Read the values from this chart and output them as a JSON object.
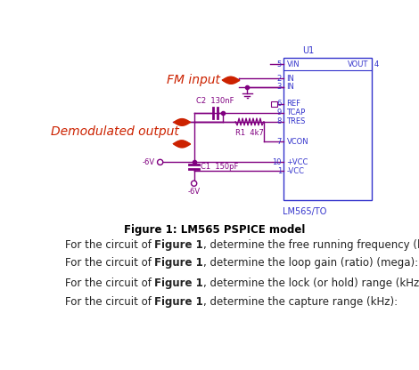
{
  "bg_color": "#ffffff",
  "fig_caption": "Figure 1: LM565 PSPICE model",
  "q1_normal1": "For the circuit of ",
  "q1_bold": "Figure 1",
  "q1_normal2": ", determine the free running frequency (kHz):",
  "q2_normal1": "For the circuit of ",
  "q2_bold": "Figure 1",
  "q2_normal2": ", determine the loop gain (ratio) (mega):",
  "q3_normal1": "For the circuit of ",
  "q3_bold": "Figure 1",
  "q3_normal2": ", determine the lock (or hold) range (kHz):",
  "q4_normal1": "For the circuit of ",
  "q4_bold": "Figure 1",
  "q4_normal2": ", determine the capture range (kHz):",
  "ic_box_color": "#3333cc",
  "wire_color": "#800080",
  "pin_color": "#3333cc",
  "comp_label_color": "#800080",
  "fm_color": "#cc2200",
  "demod_color": "#cc2200",
  "ic_label_color": "#3333cc",
  "caption_color": "#000000",
  "question_color": "#333333",
  "u1_label": "U1",
  "lm_label": "LM565/TO",
  "pin_VIN": "VIN",
  "pin_VOUT": "VOUT",
  "pin_IN_top": "IN",
  "pin_IN_bot": "IN",
  "pin_REF": "REF",
  "pin_TCAP": "TCAP",
  "pin_TRES": "TRES",
  "pin_VCON": "VCON",
  "pin_PVCC": "+VCC",
  "pin_NVCC": "-VCC",
  "fm_label": "FM input",
  "demod_label": "Demodulated output",
  "c2_label": "C2  130nF",
  "r1_label": "R1  4k7",
  "c1_label": "C1  150pF",
  "neg6v_label": "-6V",
  "neg6v_bot_label": "-6V"
}
